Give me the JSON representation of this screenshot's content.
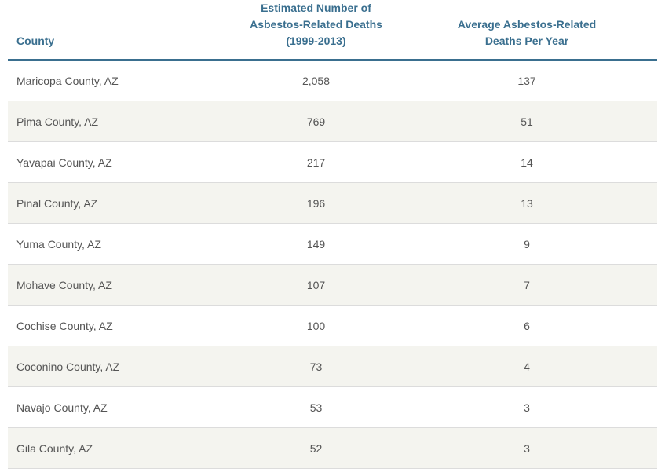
{
  "table": {
    "headers": {
      "county": "County",
      "total_line1": "Estimated Number of",
      "total_line2": "Asbestos-Related Deaths",
      "total_line3": "(1999-2013)",
      "avg_line1": "Average Asbestos-Related",
      "avg_line2": "Deaths Per Year"
    },
    "rows": [
      {
        "county": "Maricopa County, AZ",
        "total": "2,058",
        "avg": "137"
      },
      {
        "county": "Pima County, AZ",
        "total": "769",
        "avg": "51"
      },
      {
        "county": "Yavapai County, AZ",
        "total": "217",
        "avg": "14"
      },
      {
        "county": "Pinal County, AZ",
        "total": "196",
        "avg": "13"
      },
      {
        "county": "Yuma County, AZ",
        "total": "149",
        "avg": "9"
      },
      {
        "county": "Mohave County, AZ",
        "total": "107",
        "avg": "7"
      },
      {
        "county": "Cochise County, AZ",
        "total": "100",
        "avg": "6"
      },
      {
        "county": "Coconino County, AZ",
        "total": "73",
        "avg": "4"
      },
      {
        "county": "Navajo County, AZ",
        "total": "53",
        "avg": "3"
      },
      {
        "county": "Gila County, AZ",
        "total": "52",
        "avg": "3"
      }
    ]
  },
  "colors": {
    "header_text": "#3a6f8f",
    "header_rule": "#3a6f8f",
    "body_text": "#555555",
    "stripe": "#f4f4ef",
    "row_border": "#dcdcdc"
  }
}
